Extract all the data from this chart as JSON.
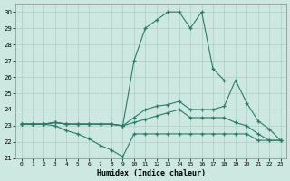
{
  "xlabel": "Humidex (Indice chaleur)",
  "background_color": "#cde8e0",
  "grid_color": "#aacfc5",
  "line_color": "#2a7a6a",
  "x_values": [
    0,
    1,
    2,
    3,
    4,
    5,
    6,
    7,
    8,
    9,
    10,
    11,
    12,
    13,
    14,
    15,
    16,
    17,
    18,
    19,
    20,
    21,
    22,
    23
  ],
  "ylim": [
    21,
    30.5
  ],
  "xlim": [
    -0.5,
    23.5
  ],
  "yticks": [
    21,
    22,
    23,
    24,
    25,
    26,
    27,
    28,
    29,
    30
  ],
  "xticks": [
    0,
    1,
    2,
    3,
    4,
    5,
    6,
    7,
    8,
    9,
    10,
    11,
    12,
    13,
    14,
    15,
    16,
    17,
    18,
    19,
    20,
    21,
    22,
    23
  ],
  "series": {
    "line1": [
      23.1,
      23.1,
      23.1,
      23.2,
      23.1,
      23.1,
      23.1,
      23.1,
      23.1,
      23.0,
      27.0,
      29.0,
      29.5,
      30.0,
      30.0,
      29.0,
      30.0,
      26.5,
      25.8,
      null,
      null,
      null,
      null,
      null
    ],
    "line2": [
      23.1,
      23.1,
      23.1,
      23.2,
      23.1,
      23.1,
      23.1,
      23.1,
      23.1,
      23.0,
      23.5,
      24.0,
      24.2,
      24.3,
      24.5,
      24.0,
      24.0,
      24.0,
      24.2,
      25.8,
      24.4,
      23.3,
      22.8,
      22.1
    ],
    "line3": [
      23.1,
      23.1,
      23.1,
      23.2,
      23.1,
      23.1,
      23.1,
      23.1,
      23.1,
      23.0,
      23.2,
      23.4,
      23.6,
      23.8,
      24.0,
      23.5,
      23.5,
      23.5,
      23.5,
      23.2,
      23.0,
      22.5,
      22.1,
      22.1
    ],
    "line4": [
      23.1,
      23.1,
      23.1,
      23.0,
      22.7,
      22.5,
      22.2,
      21.8,
      21.5,
      21.1,
      22.5,
      22.5,
      22.5,
      22.5,
      22.5,
      22.5,
      22.5,
      22.5,
      22.5,
      22.5,
      22.5,
      22.1,
      22.1,
      22.1
    ]
  }
}
